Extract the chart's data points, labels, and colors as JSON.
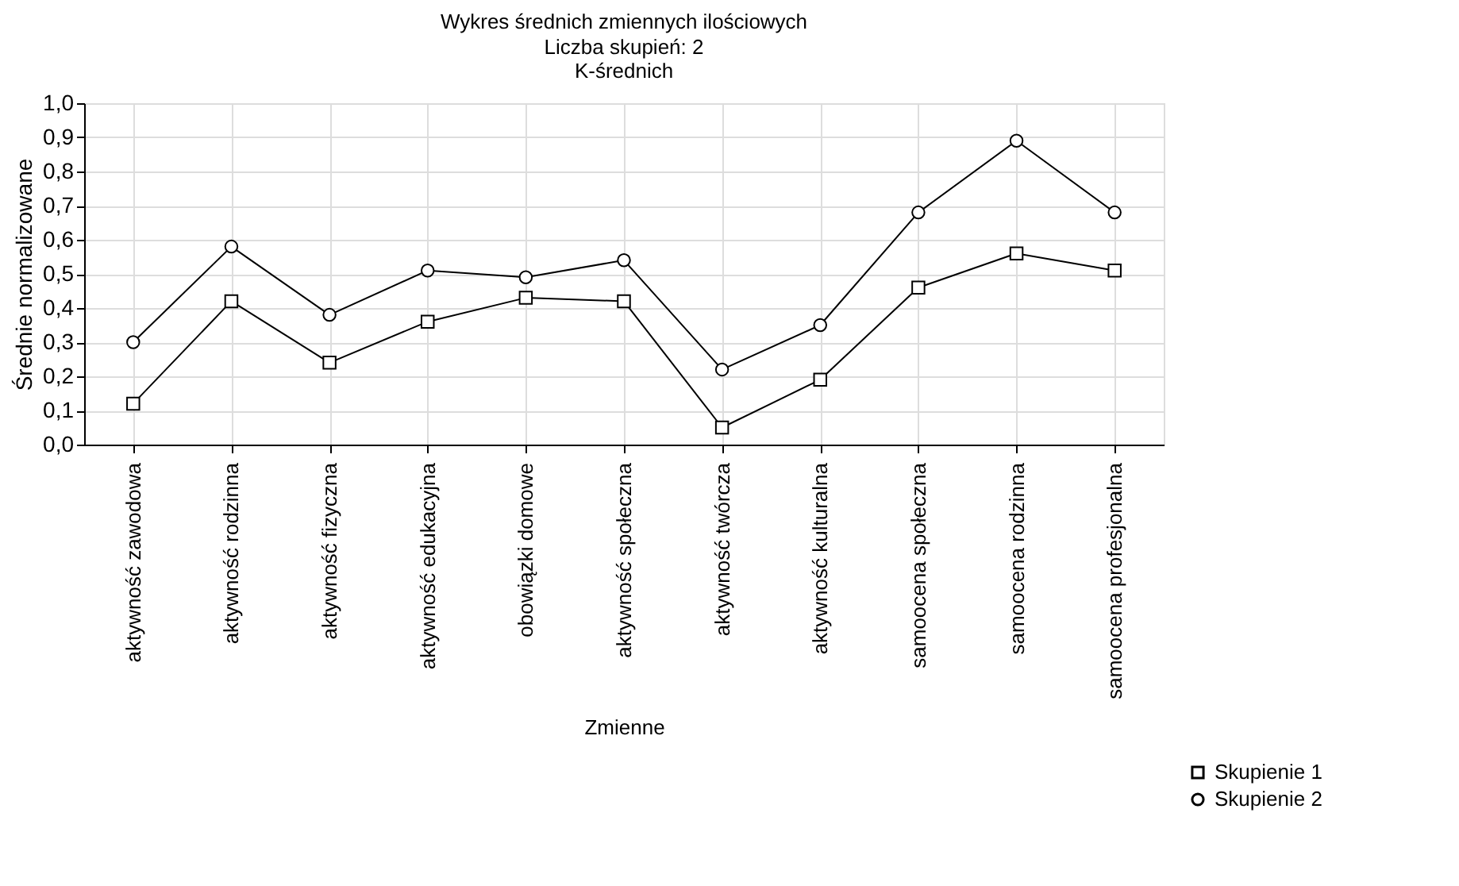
{
  "chart_data": {
    "type": "line",
    "title": "Wykres średnich zmiennych ilościowych",
    "subtitle": [
      "Liczba skupień: 2",
      "K-średnich"
    ],
    "xlabel": "Zmienne",
    "ylabel": "Średnie normalizowane",
    "categories": [
      "aktywność zawodowa",
      "aktywność rodzinna",
      "aktywność fizyczna",
      "aktywność edukacyjna",
      "obowiązki domowe",
      "aktywność społeczna",
      "aktywność twórcza",
      "aktywność kulturalna",
      "samoocena społeczna",
      "samoocena rodzinna",
      "samoocena profesjonalna"
    ],
    "series": [
      {
        "name": "Skupienie 1",
        "color": "#000000",
        "marker": "square",
        "values": [
          0.12,
          0.42,
          0.24,
          0.36,
          0.43,
          0.42,
          0.05,
          0.19,
          0.46,
          0.56,
          0.51
        ]
      },
      {
        "name": "Skupienie 2",
        "color": "#000000",
        "marker": "circle",
        "values": [
          0.3,
          0.58,
          0.38,
          0.51,
          0.49,
          0.54,
          0.22,
          0.35,
          0.68,
          0.89,
          0.68
        ]
      }
    ],
    "ylim": [
      0,
      1
    ],
    "yticks": [
      {
        "value": 0,
        "label": "0,0"
      },
      {
        "value": 0.1,
        "label": "0,1"
      },
      {
        "value": 0.2,
        "label": "0,2"
      },
      {
        "value": 0.3,
        "label": "0,3"
      },
      {
        "value": 0.4,
        "label": "0,4"
      },
      {
        "value": 0.5,
        "label": "0,5"
      },
      {
        "value": 0.6,
        "label": "0,6"
      },
      {
        "value": 0.7,
        "label": "0,7"
      },
      {
        "value": 0.8,
        "label": "0,8"
      },
      {
        "value": 0.9,
        "label": "0,9"
      },
      {
        "value": 1,
        "label": "1,0"
      }
    ],
    "grid": true,
    "legend": "bottom right",
    "line_style": "solid"
  }
}
